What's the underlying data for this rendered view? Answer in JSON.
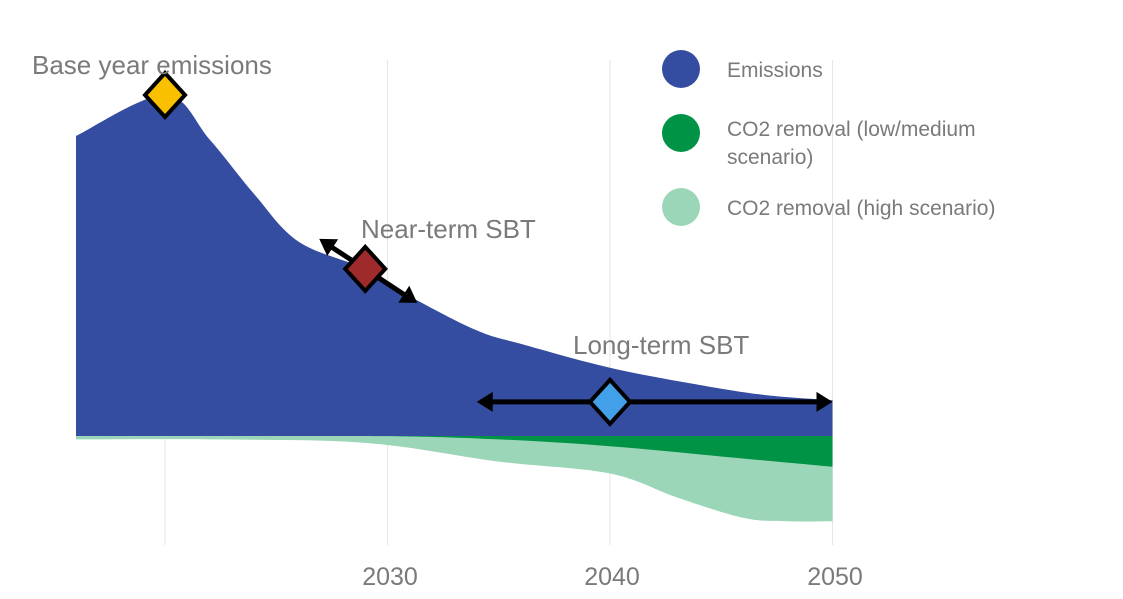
{
  "chart_data": {
    "type": "area",
    "title": "",
    "xlabel": "",
    "ylabel": "",
    "x_ticks": [
      "2030",
      "2040",
      "2050"
    ],
    "xlim": [
      2016,
      2050
    ],
    "grid": true,
    "legend_position": "top-right",
    "series": [
      {
        "name": "Emissions",
        "color": "#354da0",
        "x": [
          2016,
          2020,
          2022,
          2024,
          2026,
          2029,
          2031,
          2034,
          2036,
          2040,
          2044,
          2047,
          2050
        ],
        "values": [
          88,
          100,
          87,
          71,
          57,
          49,
          41,
          31,
          27,
          20,
          15,
          12,
          10.5
        ]
      },
      {
        "name": "CO2 removal (low/medium scenario)",
        "color": "#009245",
        "x": [
          2016,
          2029,
          2035,
          2040,
          2045,
          2050
        ],
        "values": [
          0,
          0,
          -1,
          -3,
          -6,
          -9
        ]
      },
      {
        "name": "CO2 removal (high scenario)",
        "color": "#9ad6b7",
        "x": [
          2016,
          2022,
          2029,
          2035,
          2040,
          2043,
          2046,
          2048,
          2050
        ],
        "values": [
          -1,
          -1,
          -2,
          -7.5,
          -11,
          -18,
          -24,
          -25,
          -25
        ]
      }
    ],
    "annotations": [
      {
        "label": "Base year emissions",
        "x": 2020,
        "y": 100,
        "color": "#f9c000",
        "arrow": "none"
      },
      {
        "label": "Near-term SBT",
        "x": 2029,
        "y": 49,
        "color": "#9e2a2b",
        "arrow": "diagonal"
      },
      {
        "label": "Long-term SBT",
        "x": 2040,
        "y": 10,
        "color": "#41a0e8",
        "arrow": "horizontal",
        "range": [
          2035,
          2050
        ]
      }
    ]
  }
}
